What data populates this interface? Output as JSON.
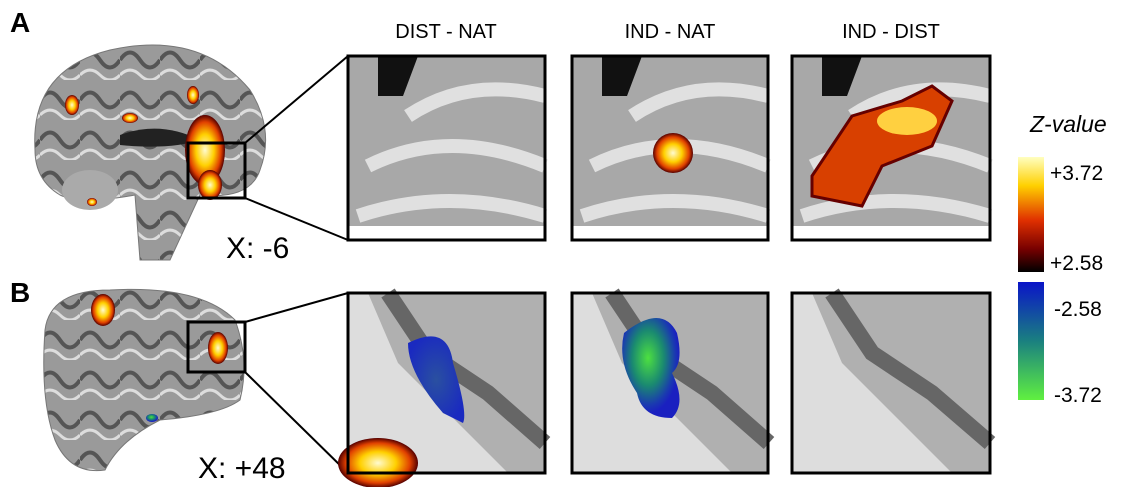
{
  "panels": [
    {
      "label": "A",
      "coordinate": "X: -6"
    },
    {
      "label": "B",
      "coordinate": "X: +48"
    }
  ],
  "columns": [
    "DIST - NAT",
    "IND - NAT",
    "IND - DIST"
  ],
  "colorbar": {
    "title": "Z-value",
    "ticks": [
      "+3.72",
      "+2.58",
      "-2.58",
      "-3.72"
    ]
  }
}
